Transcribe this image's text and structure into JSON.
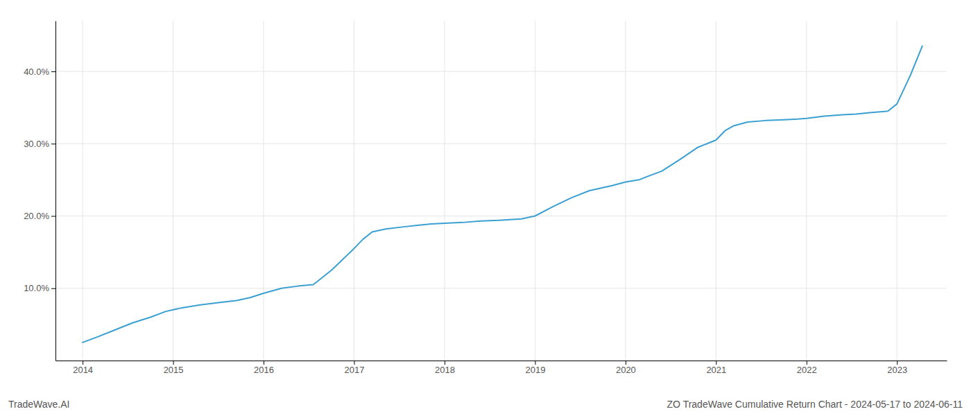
{
  "chart_data": {
    "type": "line",
    "title": "ZO TradeWave Cumulative Return Chart - 2024-05-17 to 2024-06-11",
    "annotations": [
      "TradeWave.AI"
    ],
    "color": "#3a9fd1",
    "grid": true,
    "x": [
      2014.0,
      2014.15,
      2014.35,
      2014.55,
      2014.75,
      2014.92,
      2015.1,
      2015.3,
      2015.5,
      2015.7,
      2015.85,
      2016.0,
      2016.2,
      2016.38,
      2016.55,
      2016.75,
      2017.0,
      2017.1,
      2017.2,
      2017.35,
      2017.55,
      2017.7,
      2017.85,
      2018.0,
      2018.2,
      2018.4,
      2018.6,
      2018.85,
      2019.0,
      2019.2,
      2019.4,
      2019.6,
      2019.85,
      2020.0,
      2020.15,
      2020.25,
      2020.4,
      2020.6,
      2020.8,
      2021.0,
      2021.1,
      2021.2,
      2021.35,
      2021.55,
      2021.75,
      2021.9,
      2022.0,
      2022.2,
      2022.4,
      2022.55,
      2022.7,
      2022.9,
      2023.0,
      2023.15,
      2023.28
    ],
    "values": [
      2.5,
      3.2,
      4.2,
      5.2,
      6.0,
      6.8,
      7.3,
      7.7,
      8.0,
      8.3,
      8.7,
      9.3,
      10.0,
      10.3,
      10.5,
      12.5,
      15.5,
      16.8,
      17.8,
      18.2,
      18.5,
      18.7,
      18.9,
      19.0,
      19.1,
      19.3,
      19.4,
      19.6,
      20.0,
      21.3,
      22.5,
      23.5,
      24.2,
      24.7,
      25.0,
      25.5,
      26.2,
      27.8,
      29.5,
      30.5,
      31.8,
      32.5,
      33.0,
      33.2,
      33.3,
      33.4,
      33.5,
      33.8,
      34.0,
      34.1,
      34.3,
      34.5,
      35.5,
      39.5,
      43.5
    ],
    "xlim": [
      2013.7,
      2023.55
    ],
    "ylim": [
      0,
      47
    ],
    "xticks": [
      2014,
      2015,
      2016,
      2017,
      2018,
      2019,
      2020,
      2021,
      2022,
      2023
    ],
    "yticks": [
      {
        "value": 10.0,
        "label": "10.0%"
      },
      {
        "value": 20.0,
        "label": "20.0%"
      },
      {
        "value": 30.0,
        "label": "30.0%"
      },
      {
        "value": 40.0,
        "label": "40.0%"
      }
    ]
  }
}
